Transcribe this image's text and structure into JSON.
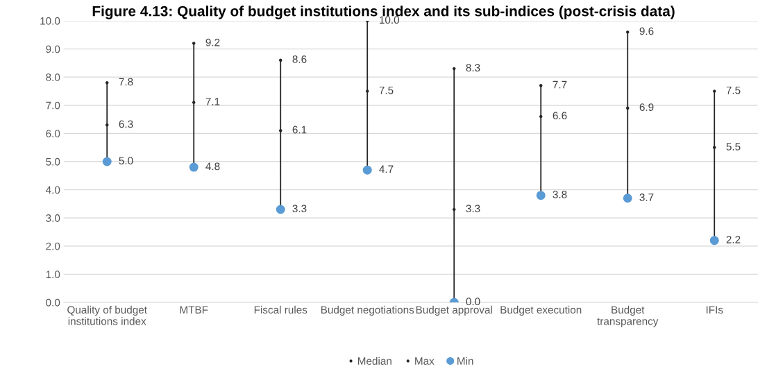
{
  "chart_data": {
    "type": "scatter",
    "title": "Figure 4.13: Quality of budget institutions index and its sub-indices (post-crisis data)",
    "categories": [
      "Quality of budget\ninstitutions index",
      "MTBF",
      "Fiscal rules",
      "Budget negotiations",
      "Budget approval",
      "Budget execution",
      "Budget\ntransparency",
      "IFIs"
    ],
    "series": [
      {
        "name": "Median",
        "marker": "none",
        "color": "#262626",
        "values": [
          6.3,
          7.1,
          6.1,
          7.5,
          3.3,
          6.6,
          6.9,
          5.5
        ],
        "value_labels": [
          "6.3",
          "7.1",
          "6.1",
          "7.5",
          "3.3",
          "6.6",
          "6.9",
          "5.5"
        ]
      },
      {
        "name": "Max",
        "marker": "none",
        "color": "#262626",
        "values": [
          7.8,
          9.2,
          8.6,
          10.0,
          8.3,
          7.7,
          9.6,
          7.5
        ],
        "value_labels": [
          "7.8",
          "9.2",
          "8.6",
          "10.0",
          "8.3",
          "7.7",
          "9.6",
          "7.5"
        ]
      },
      {
        "name": "Min",
        "marker": "circle",
        "color": "#5b9bd5",
        "values": [
          5.0,
          4.8,
          3.3,
          4.7,
          0.0,
          3.8,
          3.7,
          2.2
        ],
        "value_labels": [
          "5.0",
          "4.8",
          "3.3",
          "4.7",
          "0.0",
          "3.8",
          "3.7",
          "2.2"
        ]
      }
    ],
    "ylim": [
      0,
      10
    ],
    "yticks": [
      {
        "value": 0,
        "label": "0.0"
      },
      {
        "value": 1,
        "label": "1.0"
      },
      {
        "value": 2,
        "label": "2.0"
      },
      {
        "value": 3,
        "label": "3.0"
      },
      {
        "value": 4,
        "label": "4.0"
      },
      {
        "value": 5,
        "label": "5.0"
      },
      {
        "value": 6,
        "label": "6.0"
      },
      {
        "value": 7,
        "label": "7.0"
      },
      {
        "value": 8,
        "label": "8.0"
      },
      {
        "value": 9,
        "label": "9.0"
      },
      {
        "value": 10,
        "label": "10.0"
      }
    ],
    "grid": "y",
    "legend": "bottom"
  }
}
